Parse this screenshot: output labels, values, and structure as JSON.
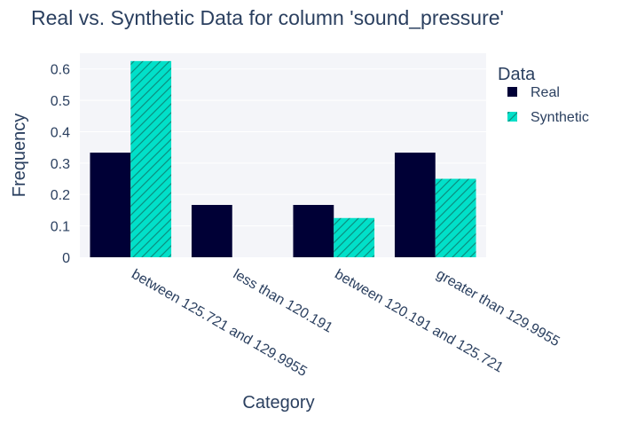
{
  "chart_data": {
    "type": "bar",
    "title": "Real vs. Synthetic Data for column 'sound_pressure'",
    "xlabel": "Category",
    "ylabel": "Frequency",
    "categories": [
      "between 125.721 and 129.9955",
      "less than 120.191",
      "between 120.191 and 125.721",
      "greater than 129.9955"
    ],
    "series": [
      {
        "name": "Real",
        "values": [
          0.3333,
          0.1667,
          0.1667,
          0.3333
        ],
        "color": "#000036",
        "pattern": "solid"
      },
      {
        "name": "Synthetic",
        "values": [
          0.625,
          0,
          0.125,
          0.25
        ],
        "color": "#01e0c9",
        "pattern": "diagonal-hatch"
      }
    ],
    "ylim": [
      0,
      0.65
    ],
    "yticks": [
      0,
      0.1,
      0.2,
      0.3,
      0.4,
      0.5,
      0.6
    ],
    "ytick_labels": [
      "0",
      "0.1",
      "0.2",
      "0.3",
      "0.4",
      "0.5",
      "0.6"
    ],
    "legend": {
      "title": "Data",
      "position": "top-right"
    },
    "grid": true,
    "plot_background": "#f4f5f9"
  }
}
